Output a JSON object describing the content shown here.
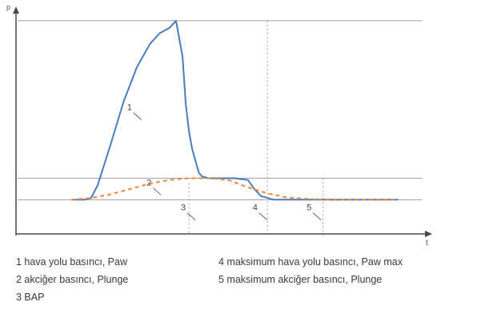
{
  "chart_data": {
    "type": "line",
    "xlabel": "t",
    "ylabel": "p",
    "series": [
      {
        "number": "1",
        "color": "#4a7cc0",
        "style": "solid",
        "x": [
          0.0,
          0.04,
          0.06,
          0.08,
          0.12,
          0.16,
          0.2,
          0.24,
          0.27,
          0.3,
          0.32,
          0.34,
          0.35,
          0.36,
          0.37,
          0.39,
          0.4,
          0.42,
          0.46,
          0.5,
          0.54,
          0.56,
          0.58,
          0.62,
          0.7,
          0.8,
          0.9,
          1.0
        ],
        "y": [
          0.0,
          0.0,
          0.01,
          0.08,
          0.31,
          0.55,
          0.74,
          0.87,
          0.93,
          0.96,
          1.0,
          0.8,
          0.53,
          0.38,
          0.28,
          0.15,
          0.13,
          0.12,
          0.12,
          0.12,
          0.11,
          0.06,
          0.02,
          0.0,
          0.0,
          0.0,
          0.0,
          0.0
        ]
      },
      {
        "number": "2",
        "color": "#f08a3a",
        "style": "dashed",
        "x": [
          0.0,
          0.06,
          0.12,
          0.18,
          0.24,
          0.3,
          0.36,
          0.42,
          0.48,
          0.54,
          0.6,
          0.66,
          0.74,
          0.85,
          1.0
        ],
        "y": [
          0.0,
          0.01,
          0.03,
          0.06,
          0.09,
          0.11,
          0.12,
          0.12,
          0.11,
          0.07,
          0.035,
          0.012,
          0.003,
          0.0,
          0.0
        ]
      }
    ],
    "annotations": [
      {
        "label": "1",
        "x": 0.17,
        "y": 0.5
      },
      {
        "label": "2",
        "x": 0.23,
        "y": 0.08
      },
      {
        "label": "3",
        "x": 0.335,
        "y": -0.06
      },
      {
        "label": "4",
        "x": 0.555,
        "y": -0.06
      },
      {
        "label": "5",
        "x": 0.72,
        "y": -0.06
      }
    ],
    "reference_lines": [
      {
        "number": "3",
        "x": 0.36
      },
      {
        "number": "4",
        "x": 0.6
      },
      {
        "number": "5",
        "x": 0.77
      }
    ],
    "reference_levels": [
      1.0,
      0.12,
      0.0
    ],
    "xlim": [
      -0.17,
      1.08
    ],
    "ylim": [
      -0.2,
      1.08
    ]
  },
  "legend": [
    {
      "number": "1",
      "text": "1  hava yolu basıncı, Paw"
    },
    {
      "number": "2",
      "text": "2  akciğer basıncı, Plunge"
    },
    {
      "number": "3",
      "text": "3  BAP"
    },
    {
      "number": "4",
      "text": "4  maksimum hava yolu basıncı, Paw max"
    },
    {
      "number": "5",
      "text": "5  maksimum akciğer basıncı, Plunge"
    }
  ]
}
